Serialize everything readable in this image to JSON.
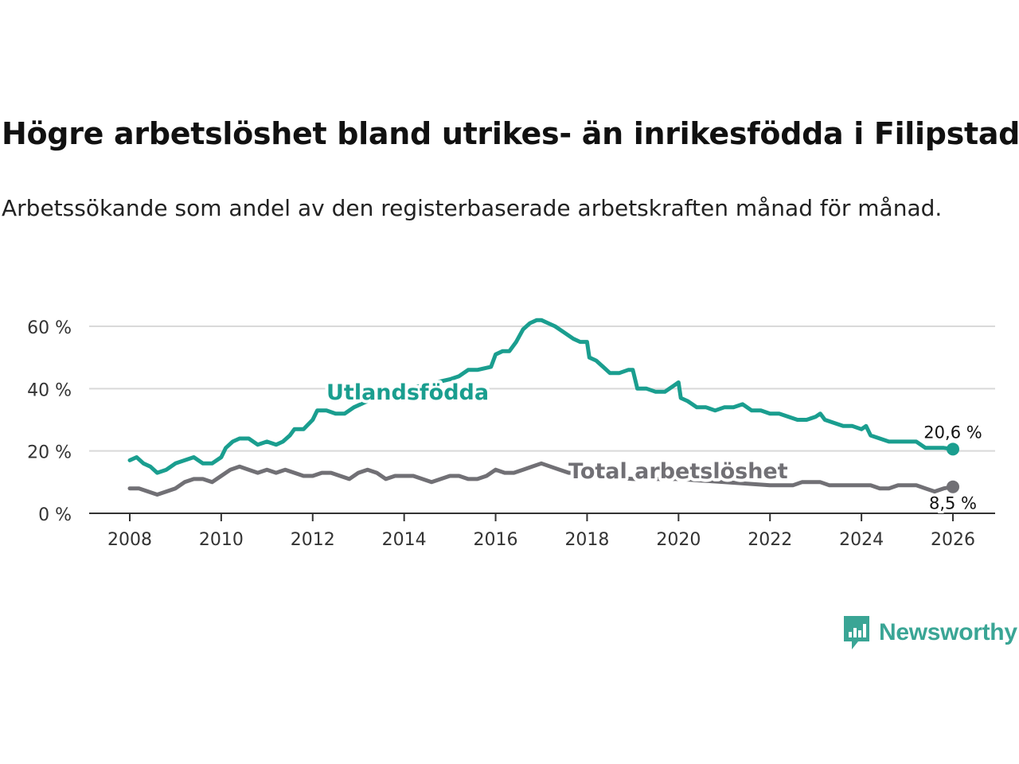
{
  "header": {
    "title": "Högre arbetslöshet bland utrikes- än inrikesfödda i Filipstad",
    "subtitle": "Arbetssökande som andel av den registerbaserade arbetskraften månad för månad."
  },
  "brand": {
    "name": "Newsworthy",
    "icon": "newsworthy-logo-icon",
    "color": "#3aa595"
  },
  "chart_data": {
    "type": "line",
    "title": "Högre arbetslöshet bland utrikes- än inrikesfödda i Filipstad",
    "subtitle": "Arbetssökande som andel av den registerbaserade arbetskraften månad för månad.",
    "xlabel": "",
    "ylabel": "",
    "xlim": [
      2007.2,
      2027.0
    ],
    "ylim": [
      0,
      60
    ],
    "grid": true,
    "x_ticks": [
      2008,
      2010,
      2012,
      2014,
      2016,
      2018,
      2020,
      2022,
      2024,
      2026
    ],
    "x_tick_labels": [
      "2008",
      "2010",
      "2012",
      "2014",
      "2016",
      "2018",
      "2020",
      "2022",
      "2024",
      "2026"
    ],
    "y_ticks": [
      0,
      20,
      40,
      60
    ],
    "y_tick_labels": [
      "0 %",
      "20 %",
      "40 %",
      "60 %"
    ],
    "series": [
      {
        "name": "Utlandsfödda",
        "color": "#1a9e8f",
        "points": [
          [
            2008.0,
            17
          ],
          [
            2008.15,
            18
          ],
          [
            2008.3,
            16
          ],
          [
            2008.45,
            15
          ],
          [
            2008.6,
            13
          ],
          [
            2008.8,
            14
          ],
          [
            2009.0,
            16
          ],
          [
            2009.2,
            17
          ],
          [
            2009.4,
            18
          ],
          [
            2009.6,
            16
          ],
          [
            2009.8,
            16
          ],
          [
            2010.0,
            18
          ],
          [
            2010.1,
            21
          ],
          [
            2010.25,
            23
          ],
          [
            2010.4,
            24
          ],
          [
            2010.6,
            24
          ],
          [
            2010.8,
            22
          ],
          [
            2011.0,
            23
          ],
          [
            2011.2,
            22
          ],
          [
            2011.35,
            23
          ],
          [
            2011.5,
            25
          ],
          [
            2011.6,
            27
          ],
          [
            2011.8,
            27
          ],
          [
            2012.0,
            30
          ],
          [
            2012.1,
            33
          ],
          [
            2012.3,
            33
          ],
          [
            2012.5,
            32
          ],
          [
            2012.7,
            32
          ],
          [
            2012.9,
            34
          ],
          [
            2013.2,
            36
          ],
          [
            2013.5,
            38
          ],
          [
            2013.8,
            39
          ],
          [
            2014.1,
            40
          ],
          [
            2014.4,
            41
          ],
          [
            2014.7,
            42
          ],
          [
            2015.0,
            43
          ],
          [
            2015.2,
            44
          ],
          [
            2015.4,
            46
          ],
          [
            2015.6,
            46
          ],
          [
            2015.9,
            47
          ],
          [
            2016.0,
            51
          ],
          [
            2016.15,
            52
          ],
          [
            2016.3,
            52
          ],
          [
            2016.45,
            55
          ],
          [
            2016.6,
            59
          ],
          [
            2016.75,
            61
          ],
          [
            2016.9,
            62
          ],
          [
            2017.0,
            62
          ],
          [
            2017.15,
            61
          ],
          [
            2017.3,
            60
          ],
          [
            2017.5,
            58
          ],
          [
            2017.7,
            56
          ],
          [
            2017.85,
            55
          ],
          [
            2018.0,
            55
          ],
          [
            2018.05,
            50
          ],
          [
            2018.2,
            49
          ],
          [
            2018.35,
            47
          ],
          [
            2018.5,
            45
          ],
          [
            2018.7,
            45
          ],
          [
            2018.9,
            46
          ],
          [
            2019.0,
            46
          ],
          [
            2019.1,
            40
          ],
          [
            2019.3,
            40
          ],
          [
            2019.5,
            39
          ],
          [
            2019.7,
            39
          ],
          [
            2019.9,
            41
          ],
          [
            2020.0,
            42
          ],
          [
            2020.05,
            37
          ],
          [
            2020.2,
            36
          ],
          [
            2020.4,
            34
          ],
          [
            2020.6,
            34
          ],
          [
            2020.8,
            33
          ],
          [
            2021.0,
            34
          ],
          [
            2021.2,
            34
          ],
          [
            2021.4,
            35
          ],
          [
            2021.6,
            33
          ],
          [
            2021.8,
            33
          ],
          [
            2022.0,
            32
          ],
          [
            2022.2,
            32
          ],
          [
            2022.4,
            31
          ],
          [
            2022.6,
            30
          ],
          [
            2022.8,
            30
          ],
          [
            2023.0,
            31
          ],
          [
            2023.1,
            32
          ],
          [
            2023.2,
            30
          ],
          [
            2023.4,
            29
          ],
          [
            2023.6,
            28
          ],
          [
            2023.8,
            28
          ],
          [
            2024.0,
            27
          ],
          [
            2024.1,
            28
          ],
          [
            2024.2,
            25
          ],
          [
            2024.4,
            24
          ],
          [
            2024.6,
            23
          ],
          [
            2024.8,
            23
          ],
          [
            2025.0,
            23
          ],
          [
            2025.2,
            23
          ],
          [
            2025.4,
            21
          ],
          [
            2025.6,
            21
          ],
          [
            2025.8,
            21
          ],
          [
            2026.0,
            20.6
          ]
        ],
        "end_label": "20,6 %",
        "label": "Utlandsfödda"
      },
      {
        "name": "Total arbetslöshet",
        "color": "#717075",
        "points": [
          [
            2008.0,
            8.0
          ],
          [
            2008.2,
            8.0
          ],
          [
            2008.4,
            7.0
          ],
          [
            2008.6,
            6.0
          ],
          [
            2008.8,
            7.0
          ],
          [
            2009.0,
            8.0
          ],
          [
            2009.2,
            10.0
          ],
          [
            2009.4,
            11.0
          ],
          [
            2009.6,
            11.0
          ],
          [
            2009.8,
            10.0
          ],
          [
            2010.0,
            12.0
          ],
          [
            2010.2,
            14.0
          ],
          [
            2010.4,
            15.0
          ],
          [
            2010.6,
            14.0
          ],
          [
            2010.8,
            13.0
          ],
          [
            2011.0,
            14.0
          ],
          [
            2011.2,
            13.0
          ],
          [
            2011.4,
            14.0
          ],
          [
            2011.6,
            13.0
          ],
          [
            2011.8,
            12.0
          ],
          [
            2012.0,
            12.0
          ],
          [
            2012.2,
            13.0
          ],
          [
            2012.4,
            13.0
          ],
          [
            2012.6,
            12.0
          ],
          [
            2012.8,
            11.0
          ],
          [
            2013.0,
            13.0
          ],
          [
            2013.2,
            14.0
          ],
          [
            2013.4,
            13.0
          ],
          [
            2013.6,
            11.0
          ],
          [
            2013.8,
            12.0
          ],
          [
            2014.0,
            12.0
          ],
          [
            2014.2,
            12.0
          ],
          [
            2014.4,
            11.0
          ],
          [
            2014.6,
            10.0
          ],
          [
            2014.8,
            11.0
          ],
          [
            2015.0,
            12.0
          ],
          [
            2015.2,
            12.0
          ],
          [
            2015.4,
            11.0
          ],
          [
            2015.6,
            11.0
          ],
          [
            2015.8,
            12.0
          ],
          [
            2016.0,
            14.0
          ],
          [
            2016.2,
            13.0
          ],
          [
            2016.4,
            13.0
          ],
          [
            2016.6,
            14.0
          ],
          [
            2016.8,
            15.0
          ],
          [
            2017.0,
            16.0
          ],
          [
            2017.2,
            15.0
          ],
          [
            2017.4,
            14.0
          ],
          [
            2017.6,
            13.0
          ],
          [
            2017.8,
            13.0
          ],
          [
            2018.0,
            12.0
          ],
          [
            2018.3,
            12.0
          ],
          [
            2018.6,
            11.5
          ],
          [
            2019.0,
            11.0
          ],
          [
            2019.5,
            11.0
          ],
          [
            2020.0,
            11.0
          ],
          [
            2020.5,
            10.5
          ],
          [
            2021.0,
            10.0
          ],
          [
            2021.5,
            9.5
          ],
          [
            2022.0,
            9.0
          ],
          [
            2022.3,
            9.0
          ],
          [
            2022.5,
            9.0
          ],
          [
            2022.7,
            10.0
          ],
          [
            2022.9,
            10.0
          ],
          [
            2023.1,
            10.0
          ],
          [
            2023.3,
            9.0
          ],
          [
            2023.5,
            9.0
          ],
          [
            2023.8,
            9.0
          ],
          [
            2024.0,
            9.0
          ],
          [
            2024.2,
            9.0
          ],
          [
            2024.4,
            8.0
          ],
          [
            2024.6,
            8.0
          ],
          [
            2024.8,
            9.0
          ],
          [
            2025.0,
            9.0
          ],
          [
            2025.2,
            9.0
          ],
          [
            2025.4,
            8.0
          ],
          [
            2025.6,
            7.0
          ],
          [
            2025.8,
            8.0
          ],
          [
            2026.0,
            8.5
          ]
        ],
        "end_label": "8,5 %",
        "label": "Total arbetslöshet"
      }
    ]
  }
}
